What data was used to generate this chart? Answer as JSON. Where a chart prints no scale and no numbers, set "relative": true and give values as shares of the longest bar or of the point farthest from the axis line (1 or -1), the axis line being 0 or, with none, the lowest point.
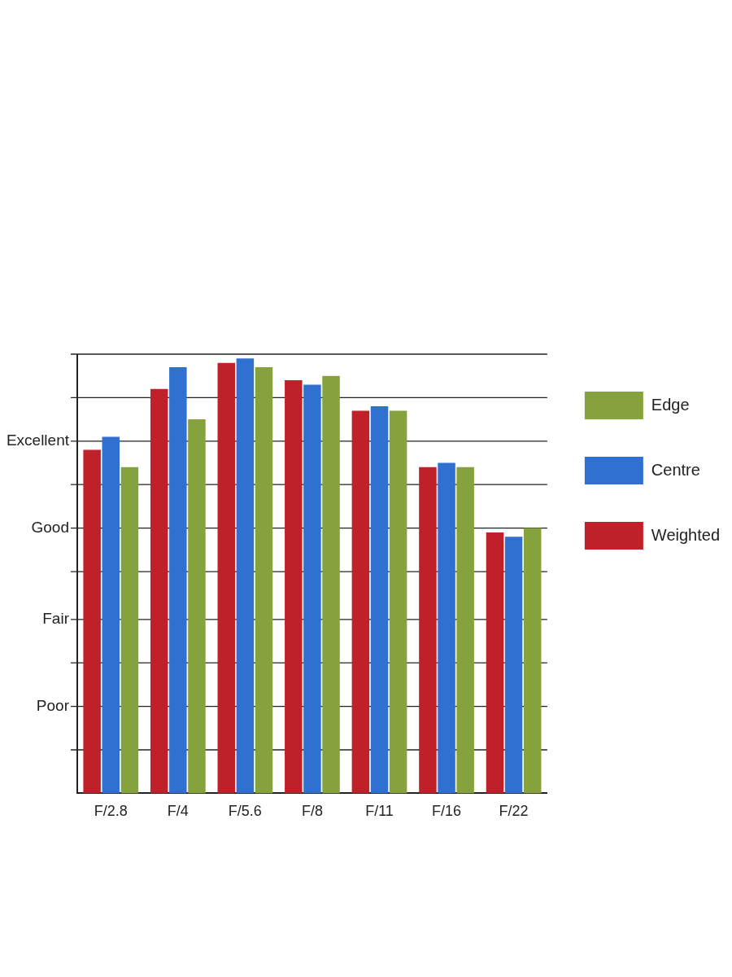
{
  "chart_data": {
    "type": "bar",
    "categories": [
      "F/2.8",
      "F/4",
      "F/5.6",
      "F/8",
      "F/11",
      "F/16",
      "F/22"
    ],
    "relative": true,
    "series": [
      {
        "name": "Weighted",
        "color": "#c0202a",
        "values": [
          0.79,
          0.93,
          0.99,
          0.95,
          0.88,
          0.75,
          0.6
        ]
      },
      {
        "name": "Centre",
        "color": "#3070d0",
        "values": [
          0.82,
          0.98,
          1,
          0.94,
          0.89,
          0.76,
          0.59
        ]
      },
      {
        "name": "Edge",
        "color": "#86a23c",
        "values": [
          0.75,
          0.86,
          0.98,
          0.96,
          0.88,
          0.75,
          0.61
        ]
      }
    ],
    "ref_lines": [
      {
        "axis": "y",
        "value": 0.1,
        "label": null
      },
      {
        "axis": "y",
        "value": 0.2,
        "label": "Poor"
      },
      {
        "axis": "y",
        "value": 0.3,
        "label": null
      },
      {
        "axis": "y",
        "value": 0.4,
        "label": "Fair"
      },
      {
        "axis": "y",
        "value": 0.51,
        "label": null
      },
      {
        "axis": "y",
        "value": 0.61,
        "label": "Good"
      },
      {
        "axis": "y",
        "value": 0.71,
        "label": null
      },
      {
        "axis": "y",
        "value": 0.81,
        "label": "Excellent"
      },
      {
        "axis": "y",
        "value": 0.91,
        "label": null
      },
      {
        "axis": "y",
        "value": 1.01,
        "label": null
      }
    ],
    "legend": "right"
  }
}
